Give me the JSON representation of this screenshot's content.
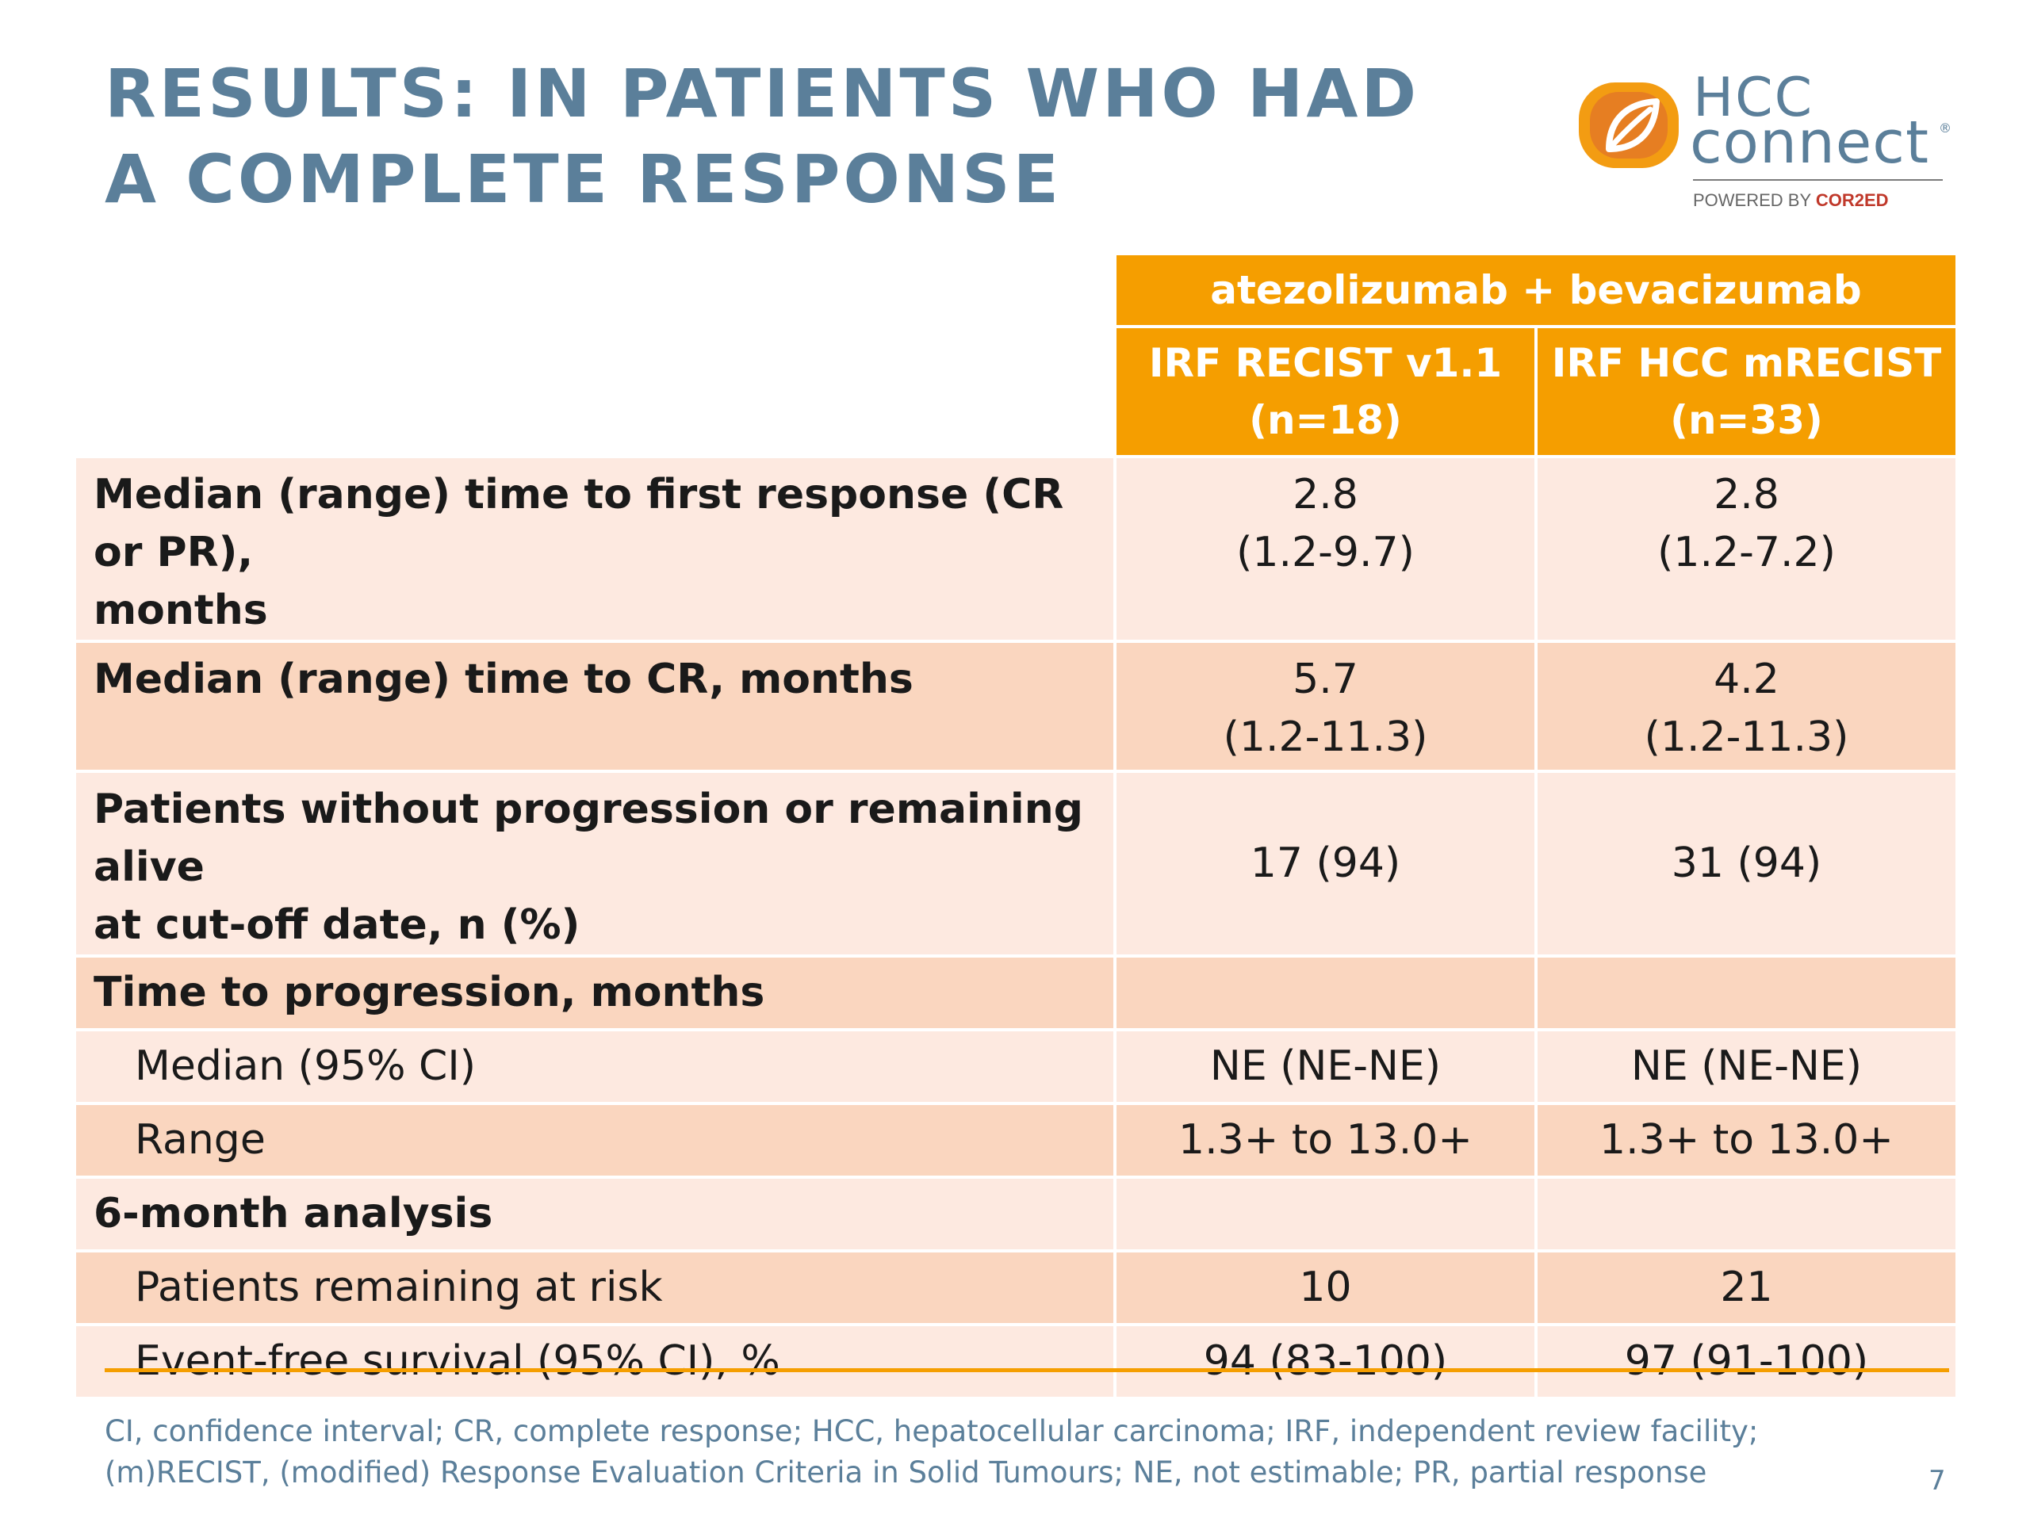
{
  "slide": {
    "title_lines": [
      "RESULTS: IN PATIENTS WHO HAD",
      "A COMPLETE RESPONSE"
    ],
    "page_number": "7"
  },
  "logo": {
    "line1": "HCC",
    "line2": "connect",
    "registered": "®",
    "powered_by": "POWERED BY",
    "brand": "COR2ED",
    "icon": "stylized-leaf-icon"
  },
  "table": {
    "group_header": "atezolizumab + bevacizumab",
    "columns": [
      {
        "line1": "IRF RECIST v1.1",
        "line2": "(n=18)"
      },
      {
        "line1": "IRF HCC mRECIST",
        "line2": "(n=33)"
      }
    ],
    "rows": [
      {
        "label_lines": [
          "Median (range) time to first response (CR or PR),",
          "months"
        ],
        "col1": [
          "2.8",
          "(1.2-9.7)"
        ],
        "col2": [
          "2.8",
          "(1.2-7.2)"
        ]
      },
      {
        "label_lines": [
          "Median (range) time to CR, months"
        ],
        "col1": [
          "5.7",
          "(1.2-11.3)"
        ],
        "col2": [
          "4.2",
          "(1.2-11.3)"
        ]
      },
      {
        "label_lines": [
          "Patients without progression or remaining alive",
          "at cut-off date, n (%)"
        ],
        "col1": [
          "17 (94)"
        ],
        "col2": [
          "31 (94)"
        ]
      },
      {
        "label_lines": [
          "Time to progression, months"
        ],
        "col1": [],
        "col2": []
      },
      {
        "label_lines": [
          "Median (95% CI)"
        ],
        "col1": [
          "NE (NE-NE)"
        ],
        "col2": [
          "NE (NE-NE)"
        ]
      },
      {
        "label_lines": [
          "Range"
        ],
        "col1": [
          "1.3+ to 13.0+"
        ],
        "col2": [
          "1.3+ to 13.0+"
        ]
      },
      {
        "label_lines": [
          "6-month analysis"
        ],
        "col1": [],
        "col2": []
      },
      {
        "label_lines": [
          "Patients remaining at risk"
        ],
        "col1": [
          "10"
        ],
        "col2": [
          "21"
        ]
      },
      {
        "label_lines": [
          "Event-free survival (95% CI), %"
        ],
        "col1": [
          "94 (83-100)"
        ],
        "col2": [
          "97 (91-100)"
        ]
      }
    ]
  },
  "footnote_lines": [
    "CI, confidence interval; CR, complete response; HCC, hepatocellular carcinoma; IRF, independent review facility;",
    "(m)RECIST, (modified) Response Evaluation Criteria in Solid Tumours; NE, not estimable; PR, partial response"
  ],
  "colors": {
    "title": "#5b7f9a",
    "header_orange": "#f59e00",
    "row_light": "#fde9e0",
    "row_dark": "#fad6bf"
  }
}
